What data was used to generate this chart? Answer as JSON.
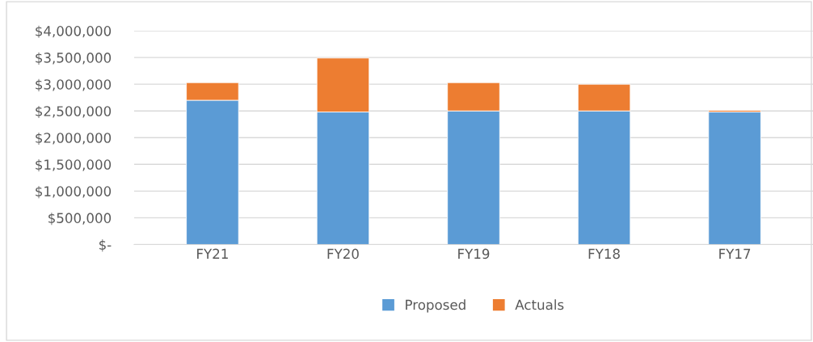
{
  "chart_data": {
    "type": "bar",
    "stacked": true,
    "categories": [
      "FY21",
      "FY20",
      "FY19",
      "FY18",
      "FY17"
    ],
    "series": [
      {
        "name": "Proposed",
        "color": "#5b9bd5",
        "values": [
          2700000,
          2480000,
          2500000,
          2500000,
          2480000
        ]
      },
      {
        "name": "Actuals",
        "color": "#ed7d31",
        "values": [
          330000,
          1010000,
          530000,
          500000,
          30000
        ]
      }
    ],
    "ylim": [
      0,
      4000000
    ],
    "yticks": [
      {
        "value": 0,
        "label": "$-"
      },
      {
        "value": 500000,
        "label": "$500,000"
      },
      {
        "value": 1000000,
        "label": "$1,000,000"
      },
      {
        "value": 1500000,
        "label": "$1,500,000"
      },
      {
        "value": 2000000,
        "label": "$2,000,000"
      },
      {
        "value": 2500000,
        "label": "$2,500,000"
      },
      {
        "value": 3000000,
        "label": "$3,000,000"
      },
      {
        "value": 3500000,
        "label": "$3,500,000"
      },
      {
        "value": 4000000,
        "label": "$4,000,000"
      }
    ],
    "grid": "y",
    "legend": "bottom"
  }
}
